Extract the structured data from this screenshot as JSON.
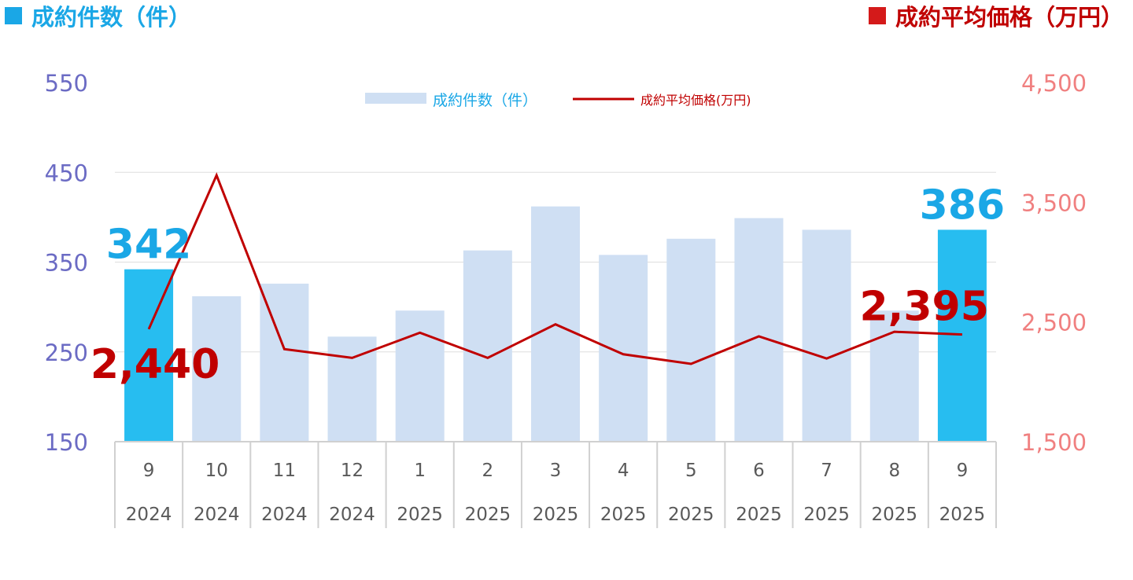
{
  "header": {
    "left_title": "成約件数（件）",
    "right_title": "成約平均価格（万円）",
    "left_color": "#1aa7e6",
    "right_color": "#c00000"
  },
  "chart_data": {
    "type": "bar",
    "categories": [
      {
        "month": "9",
        "year": "2024"
      },
      {
        "month": "10",
        "year": "2024"
      },
      {
        "month": "11",
        "year": "2024"
      },
      {
        "month": "12",
        "year": "2024"
      },
      {
        "month": "1",
        "year": "2025"
      },
      {
        "month": "2",
        "year": "2025"
      },
      {
        "month": "3",
        "year": "2025"
      },
      {
        "month": "4",
        "year": "2025"
      },
      {
        "month": "5",
        "year": "2025"
      },
      {
        "month": "6",
        "year": "2025"
      },
      {
        "month": "7",
        "year": "2025"
      },
      {
        "month": "8",
        "year": "2025"
      },
      {
        "month": "9",
        "year": "2025"
      }
    ],
    "series": [
      {
        "name": "成約件数（件）",
        "type": "bar",
        "axis": "left",
        "values": [
          342,
          312,
          326,
          267,
          296,
          363,
          412,
          358,
          376,
          399,
          386,
          296,
          386
        ],
        "color": "#cfdff3",
        "highlight_color": "#27bdf0",
        "highlight_indices": [
          0,
          12
        ]
      },
      {
        "name": "成約平均価格(万円)",
        "type": "line",
        "axis": "right",
        "values": [
          2440,
          3725,
          2273,
          2200,
          2410,
          2200,
          2480,
          2230,
          2150,
          2380,
          2195,
          2418,
          2395
        ],
        "color": "#c00000"
      }
    ],
    "left_axis": {
      "min": 150,
      "max": 550,
      "ticks": [
        "550",
        "450",
        "350",
        "250",
        "150"
      ],
      "color": "#6b6bc4"
    },
    "right_axis": {
      "min": 1500,
      "max": 4500,
      "ticks": [
        "4,500",
        "3,500",
        "2,500",
        "1,500"
      ],
      "color": "#f08080"
    },
    "data_labels": [
      {
        "series": 0,
        "index": 0,
        "text": "342",
        "color": "#1aa7e6"
      },
      {
        "series": 0,
        "index": 12,
        "text": "386",
        "color": "#1aa7e6"
      },
      {
        "series": 1,
        "index": 0,
        "text": "2,440",
        "color": "#c00000"
      },
      {
        "series": 1,
        "index": 12,
        "text": "2,395",
        "color": "#c00000"
      }
    ],
    "legend": {
      "placement": "top-center"
    },
    "grid": true
  }
}
